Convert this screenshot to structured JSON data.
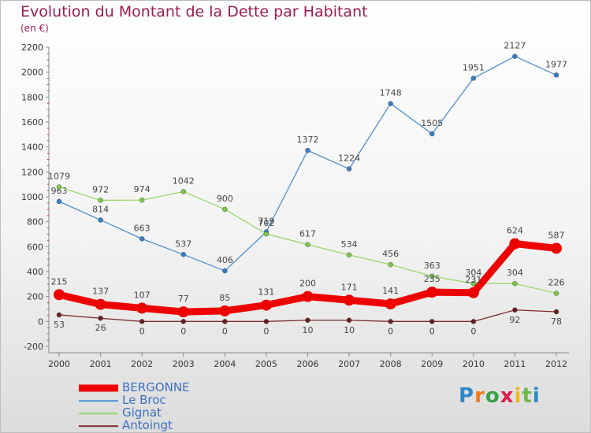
{
  "title": "Evolution du Montant de la Dette par Habitant",
  "subtitle": "(en €)",
  "brand": {
    "text": "Proxiti",
    "letter_colors": [
      "#2f88c9",
      "#f07b22",
      "#3aa14a",
      "#d81f4f",
      "#f2b51c",
      "#6cb84a",
      "#2f88c9"
    ]
  },
  "chart_data": {
    "type": "line",
    "x": [
      "2000",
      "2001",
      "2002",
      "2003",
      "2004",
      "2005",
      "2006",
      "2007",
      "2008",
      "2009",
      "2010",
      "2011",
      "2012"
    ],
    "ylim": [
      -200,
      2200
    ],
    "yticks": [
      "-200",
      "0",
      "200",
      "400",
      "600",
      "800",
      "1000",
      "1200",
      "1400",
      "1600",
      "1800",
      "2000",
      "2200"
    ],
    "grid": false,
    "legend_position": "bottom-left",
    "series": [
      {
        "name": "Le Broc",
        "color": "#4d8fcf",
        "marker": "#3a7dc4",
        "values": [
          963,
          814,
          663,
          537,
          406,
          719,
          1372,
          1224,
          1748,
          1505,
          1951,
          2127,
          1977
        ],
        "labels": [
          "963",
          "814",
          "663",
          "537",
          "406",
          "719",
          "1372",
          "1224",
          "1748",
          "1505",
          "1951",
          "2127",
          "1977"
        ]
      },
      {
        "name": "Gignat",
        "color": "#9ad86a",
        "marker": "#7cc84a",
        "values": [
          1079,
          972,
          974,
          1042,
          900,
          702,
          617,
          534,
          456,
          363,
          304,
          304,
          226
        ],
        "labels": [
          "1079",
          "972",
          "974",
          "1042",
          "900",
          "702",
          "617",
          "534",
          "456",
          "363",
          "304",
          "304",
          "226"
        ]
      },
      {
        "name": "Antoingt",
        "color": "#7a2a2a",
        "marker": "#6a1e1e",
        "values": [
          53,
          26,
          0,
          0,
          0,
          0,
          10,
          10,
          0,
          0,
          0,
          92,
          78
        ],
        "labels": [
          "53",
          "26",
          "0",
          "0",
          "0",
          "0",
          "10",
          "10",
          "0",
          "0",
          "0",
          "92",
          "78"
        ]
      },
      {
        "name": "BERGONNE",
        "color": "#ee0000",
        "marker": "#ee0000",
        "values": [
          215,
          137,
          107,
          77,
          85,
          131,
          200,
          171,
          141,
          235,
          231,
          624,
          587
        ],
        "labels": [
          "215",
          "137",
          "107",
          "77",
          "85",
          "131",
          "200",
          "171",
          "141",
          "235",
          "231",
          "624",
          "587"
        ]
      }
    ],
    "legend_order": [
      "BERGONNE",
      "Le Broc",
      "Gignat",
      "Antoingt"
    ]
  }
}
